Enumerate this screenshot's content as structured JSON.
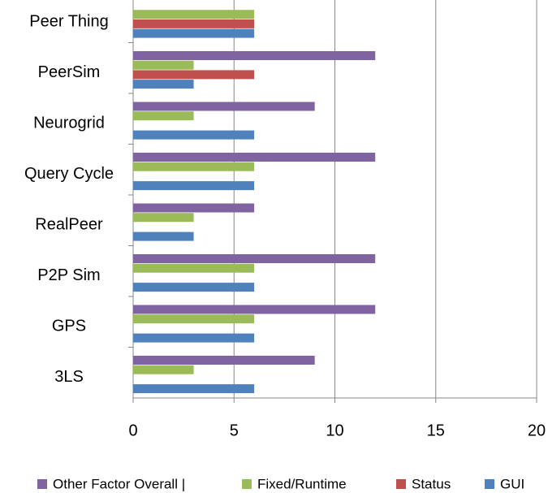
{
  "chart_data": {
    "type": "hbar",
    "categories": [
      "Peer Thing",
      "PeerSim",
      "Neurogrid",
      "Query Cycle",
      "RealPeer",
      "P2P Sim",
      "GPS",
      "3LS"
    ],
    "series": [
      {
        "name": "Other Factor Overall |",
        "color": "#8064a2",
        "values": [
          0,
          12,
          9,
          12,
          6,
          12,
          12,
          9
        ]
      },
      {
        "name": "Fixed/Runtime",
        "color": "#9bbb59",
        "values": [
          6,
          3,
          3,
          6,
          3,
          6,
          6,
          3
        ]
      },
      {
        "name": "Status",
        "color": "#c0504d",
        "values": [
          6,
          6,
          0,
          0,
          0,
          0,
          0,
          0
        ]
      },
      {
        "name": "GUI",
        "color": "#4f81bd",
        "values": [
          6,
          3,
          6,
          6,
          3,
          6,
          6,
          6
        ]
      }
    ],
    "xlim": [
      0,
      20
    ],
    "xticks": [
      0,
      5,
      10,
      15,
      20
    ],
    "grid": true
  }
}
